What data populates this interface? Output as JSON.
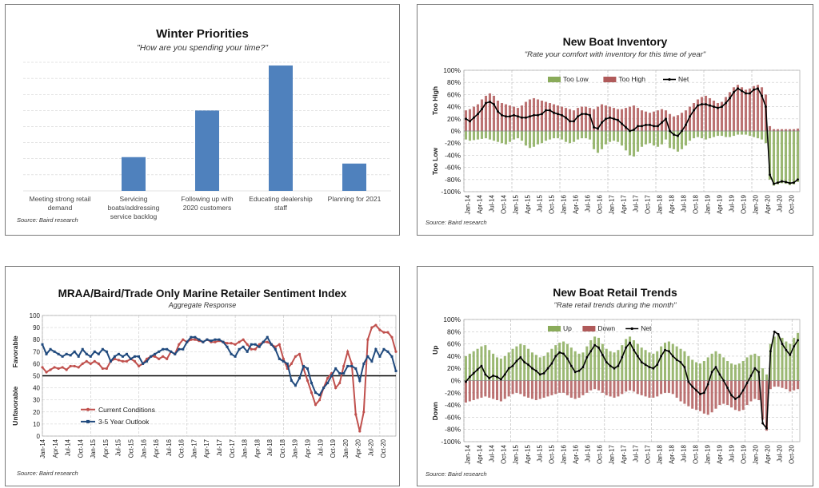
{
  "colors": {
    "bar_blue": "#4f81bd",
    "too_low_green": "#8aab5a",
    "too_high_red": "#b05a5a",
    "net_black": "#000000",
    "current_red": "#c0504d",
    "outlook_blue": "#1f497d",
    "grid": "#c8c8c8"
  },
  "chart_data": [
    {
      "id": "winter",
      "type": "bar",
      "title": "Winter Priorities",
      "subtitle": "\"How are you spending your time?\"",
      "source": "Source: Baird research",
      "categories": [
        "Meeting strong retail demand",
        "Servicing boats/addressing service backlog",
        "Following up with 2020 customers",
        "Educating dealership staff",
        "Planning for 2021"
      ],
      "values": [
        0,
        21,
        50,
        78,
        17
      ],
      "ylim": [
        0,
        80
      ],
      "grid": true
    },
    {
      "id": "inventory",
      "type": "bar",
      "title": "New Boat Inventory",
      "subtitle": "\"Rate your comfort with inventory for this time of year\"",
      "source": "Source: Baird research",
      "ytick_labels": [
        "100%",
        "80%",
        "60%",
        "40%",
        "20%",
        "0%",
        "-20%",
        "-40%",
        "-60%",
        "-80%",
        "-100%"
      ],
      "ylim": [
        -100,
        100
      ],
      "ylabel_top": "Too High",
      "ylabel_bottom": "Too Low",
      "x_labels": [
        "Jan-14",
        "Apr-14",
        "Jul-14",
        "Oct-14",
        "Jan-15",
        "Apr-15",
        "Jul-15",
        "Oct-15",
        "Jan-16",
        "Apr-16",
        "Jul-16",
        "Oct-16",
        "Jan-17",
        "Apr-17",
        "Jul-17",
        "Oct-17",
        "Jan-18",
        "Apr-18",
        "Jul-18",
        "Oct-18",
        "Jan-19",
        "Apr-19",
        "Jul-19",
        "Oct-19",
        "Jan-20",
        "Apr-20",
        "Jul-20",
        "Oct-20"
      ],
      "legend": [
        "Too Low",
        "Too High",
        "Net"
      ],
      "series": [
        {
          "name": "Too Low",
          "values": [
            -14,
            -16,
            -15,
            -14,
            -13,
            -12,
            -14,
            -16,
            -18,
            -20,
            -22,
            -18,
            -14,
            -12,
            -16,
            -24,
            -28,
            -26,
            -22,
            -20,
            -16,
            -14,
            -12,
            -12,
            -14,
            -18,
            -20,
            -18,
            -14,
            -12,
            -12,
            -14,
            -30,
            -36,
            -30,
            -22,
            -18,
            -16,
            -18,
            -24,
            -32,
            -40,
            -42,
            -34,
            -26,
            -22,
            -20,
            -24,
            -26,
            -22,
            -14,
            -28,
            -30,
            -34,
            -30,
            -24,
            -16,
            -12,
            -10,
            -12,
            -14,
            -12,
            -10,
            -8,
            -8,
            -10,
            -10,
            -8,
            -6,
            -6,
            -6,
            -8,
            -10,
            -12,
            -14,
            -20,
            -80,
            -90,
            -88,
            -86,
            -87,
            -89,
            -88,
            -84
          ]
        },
        {
          "name": "Too High",
          "values": [
            34,
            36,
            40,
            44,
            52,
            58,
            62,
            58,
            50,
            46,
            44,
            42,
            40,
            38,
            42,
            48,
            52,
            54,
            52,
            50,
            48,
            46,
            44,
            42,
            40,
            38,
            36,
            34,
            38,
            40,
            40,
            38,
            36,
            40,
            44,
            42,
            40,
            38,
            36,
            36,
            38,
            40,
            42,
            38,
            34,
            32,
            30,
            32,
            34,
            36,
            34,
            28,
            24,
            26,
            30,
            34,
            40,
            46,
            52,
            56,
            58,
            54,
            50,
            46,
            48,
            56,
            64,
            72,
            76,
            72,
            68,
            70,
            74,
            76,
            72,
            60,
            8,
            3,
            3,
            3,
            3,
            3,
            3,
            4
          ]
        },
        {
          "name": "Net",
          "values": [
            20,
            16,
            22,
            28,
            36,
            46,
            48,
            44,
            32,
            26,
            24,
            24,
            26,
            24,
            22,
            22,
            24,
            26,
            26,
            28,
            34,
            34,
            30,
            28,
            26,
            22,
            16,
            16,
            24,
            28,
            28,
            26,
            6,
            4,
            14,
            20,
            22,
            20,
            18,
            12,
            6,
            0,
            2,
            8,
            8,
            10,
            10,
            8,
            8,
            14,
            20,
            0,
            -6,
            -8,
            0,
            10,
            24,
            34,
            42,
            44,
            44,
            42,
            40,
            38,
            40,
            46,
            54,
            64,
            70,
            66,
            62,
            62,
            68,
            70,
            58,
            40,
            -72,
            -87,
            -85,
            -83,
            -84,
            -86,
            -85,
            -80
          ]
        }
      ]
    },
    {
      "id": "sentiment",
      "type": "line",
      "title": "MRAA/Baird/Trade Only Marine Retailer Sentiment Index",
      "subtitle": "Aggregate Response",
      "source": "Source: Baird research",
      "ytick_labels": [
        "100",
        "90",
        "80",
        "70",
        "60",
        "50",
        "40",
        "30",
        "20",
        "10",
        "0"
      ],
      "ylim": [
        0,
        100
      ],
      "reference_line": 50,
      "ylabel_top": "Favorable",
      "ylabel_bottom": "Unfavorable",
      "x_labels": [
        "Jan-14",
        "Apr-14",
        "Jul-14",
        "Oct-14",
        "Jan-15",
        "Apr-15",
        "Jul-15",
        "Oct-15",
        "Jan-16",
        "Apr-16",
        "Jul-16",
        "Oct-16",
        "Jan-17",
        "Apr-17",
        "Jul-17",
        "Oct-17",
        "Jan-18",
        "Apr-18",
        "Jul-18",
        "Oct-18",
        "Jan-19",
        "Apr-19",
        "Jul-19",
        "Oct-19",
        "Jan-20",
        "Apr-20",
        "Jul-20",
        "Oct-20"
      ],
      "legend": [
        "Current Conditions",
        "3-5 Year Outlook"
      ],
      "series": [
        {
          "name": "Current Conditions",
          "values": [
            57,
            53,
            55,
            57,
            56,
            57,
            55,
            58,
            58,
            57,
            60,
            62,
            60,
            62,
            60,
            56,
            56,
            62,
            64,
            63,
            62,
            62,
            64,
            62,
            58,
            60,
            64,
            66,
            66,
            64,
            66,
            64,
            70,
            68,
            76,
            80,
            78,
            80,
            80,
            79,
            78,
            80,
            78,
            78,
            79,
            78,
            77,
            77,
            76,
            78,
            80,
            76,
            72,
            72,
            76,
            78,
            78,
            76,
            74,
            76,
            64,
            56,
            60,
            66,
            68,
            56,
            46,
            36,
            26,
            30,
            40,
            48,
            52,
            40,
            44,
            58,
            70,
            60,
            18,
            4,
            20,
            80,
            90,
            92,
            88,
            86,
            86,
            82,
            70
          ]
        },
        {
          "name": "3-5 Year Outlook",
          "values": [
            76,
            68,
            72,
            70,
            68,
            66,
            68,
            67,
            70,
            66,
            72,
            68,
            66,
            70,
            68,
            72,
            70,
            62,
            66,
            68,
            66,
            68,
            64,
            66,
            66,
            60,
            62,
            66,
            68,
            70,
            72,
            72,
            70,
            68,
            72,
            72,
            78,
            82,
            82,
            80,
            78,
            80,
            79,
            80,
            80,
            78,
            74,
            68,
            66,
            72,
            74,
            70,
            76,
            76,
            74,
            78,
            82,
            76,
            72,
            64,
            62,
            60,
            46,
            42,
            48,
            58,
            56,
            44,
            36,
            34,
            40,
            44,
            50,
            56,
            52,
            52,
            58,
            58,
            56,
            46,
            60,
            66,
            62,
            72,
            66,
            72,
            70,
            66,
            54
          ]
        }
      ]
    },
    {
      "id": "retail",
      "type": "bar",
      "title": "New Boat Retail Trends",
      "subtitle": "\"Rate retail trends during the month\"",
      "source": "Source: Baird research",
      "ytick_labels": [
        "100%",
        "80%",
        "60%",
        "40%",
        "20%",
        "0%",
        "-20%",
        "-40%",
        "-60%",
        "-80%",
        "-100%"
      ],
      "ylim": [
        -100,
        100
      ],
      "ylabel_top": "Up",
      "ylabel_bottom": "Down",
      "x_labels": [
        "Jan-14",
        "Apr-14",
        "Jul-14",
        "Oct-14",
        "Jan-15",
        "Apr-15",
        "Jul-15",
        "Oct-15",
        "Jan-16",
        "Apr-16",
        "Jul-16",
        "Oct-16",
        "Jan-17",
        "Apr-17",
        "Jul-17",
        "Oct-17",
        "Jan-18",
        "Apr-18",
        "Jul-18",
        "Oct-18",
        "Jan-19",
        "Apr-19",
        "Jul-19",
        "Oct-19",
        "Jan-20",
        "Apr-20",
        "Jul-20",
        "Oct-20"
      ],
      "legend": [
        "Up",
        "Down",
        "Net"
      ],
      "series": [
        {
          "name": "Up",
          "values": [
            40,
            44,
            48,
            52,
            56,
            58,
            50,
            44,
            38,
            36,
            40,
            46,
            52,
            56,
            60,
            58,
            52,
            46,
            42,
            38,
            40,
            46,
            52,
            58,
            62,
            64,
            60,
            54,
            48,
            44,
            46,
            56,
            66,
            72,
            70,
            60,
            52,
            48,
            46,
            50,
            58,
            68,
            72,
            66,
            60,
            54,
            50,
            46,
            44,
            48,
            56,
            62,
            64,
            60,
            56,
            52,
            48,
            40,
            34,
            30,
            28,
            32,
            38,
            44,
            48,
            44,
            38,
            32,
            28,
            26,
            28,
            32,
            38,
            42,
            44,
            40,
            20,
            10,
            60,
            72,
            76,
            70,
            64,
            60,
            70,
            78
          ]
        },
        {
          "name": "Down",
          "values": [
            -36,
            -34,
            -32,
            -30,
            -28,
            -26,
            -28,
            -30,
            -32,
            -34,
            -30,
            -26,
            -22,
            -20,
            -22,
            -26,
            -28,
            -30,
            -32,
            -30,
            -28,
            -26,
            -24,
            -22,
            -20,
            -20,
            -24,
            -28,
            -30,
            -28,
            -24,
            -20,
            -16,
            -14,
            -16,
            -20,
            -24,
            -26,
            -28,
            -26,
            -22,
            -18,
            -16,
            -18,
            -22,
            -24,
            -26,
            -28,
            -28,
            -26,
            -22,
            -20,
            -20,
            -22,
            -28,
            -34,
            -38,
            -42,
            -46,
            -48,
            -50,
            -54,
            -56,
            -52,
            -46,
            -40,
            -38,
            -40,
            -44,
            -48,
            -50,
            -48,
            -40,
            -34,
            -30,
            -32,
            -64,
            -82,
            -14,
            -10,
            -10,
            -12,
            -14,
            -18,
            -16,
            -14
          ]
        },
        {
          "name": "Net",
          "values": [
            -2,
            6,
            12,
            18,
            24,
            10,
            4,
            8,
            6,
            2,
            10,
            20,
            24,
            32,
            38,
            30,
            26,
            20,
            16,
            10,
            12,
            20,
            28,
            40,
            46,
            44,
            36,
            24,
            14,
            16,
            22,
            38,
            48,
            58,
            54,
            42,
            30,
            24,
            20,
            24,
            38,
            54,
            62,
            50,
            40,
            30,
            26,
            22,
            20,
            26,
            40,
            50,
            48,
            40,
            34,
            30,
            22,
            -2,
            -10,
            -16,
            -22,
            -20,
            -6,
            14,
            22,
            10,
            0,
            -12,
            -24,
            -30,
            -26,
            -16,
            -4,
            8,
            20,
            14,
            -70,
            -78,
            48,
            80,
            76,
            60,
            50,
            42,
            56,
            66
          ]
        }
      ]
    }
  ]
}
